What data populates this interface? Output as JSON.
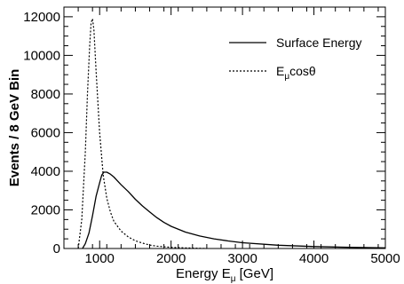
{
  "chart_data": {
    "type": "line",
    "title": "",
    "xlabel": "Energy E",
    "xlabel_sub": "μ",
    "xlabel_unit": " [GeV]",
    "ylabel": "Events / 8 GeV Bin",
    "xlim": [
      500,
      5000
    ],
    "ylim": [
      0,
      12500
    ],
    "x_ticks": [
      1000,
      2000,
      3000,
      4000,
      5000
    ],
    "y_ticks": [
      0,
      2000,
      4000,
      6000,
      8000,
      10000,
      12000
    ],
    "grid": false,
    "legend_position": "top-right",
    "legend": [
      {
        "label": "Surface Energy",
        "style": "solid"
      },
      {
        "label": "E",
        "sub": "μ",
        "tail": "cosθ",
        "style": "dotted"
      }
    ],
    "series": [
      {
        "name": "Surface Energy",
        "style": "solid",
        "color": "#000000",
        "x": [
          760,
          800,
          850,
          900,
          950,
          1000,
          1030,
          1060,
          1100,
          1150,
          1200,
          1250,
          1300,
          1400,
          1500,
          1600,
          1700,
          1800,
          1900,
          2000,
          2200,
          2400,
          2600,
          2800,
          3000,
          3500,
          4000,
          4500,
          5000
        ],
        "y": [
          0,
          250,
          800,
          1700,
          2700,
          3400,
          3800,
          3950,
          3950,
          3850,
          3700,
          3500,
          3300,
          2950,
          2550,
          2200,
          1900,
          1600,
          1350,
          1150,
          850,
          650,
          500,
          390,
          300,
          170,
          100,
          60,
          30
        ]
      },
      {
        "name": "E_μ cosθ",
        "style": "dotted",
        "color": "#000000",
        "x": [
          700,
          750,
          800,
          830,
          860,
          880,
          900,
          920,
          950,
          1000,
          1050,
          1100,
          1150,
          1200,
          1300,
          1400,
          1500,
          1600,
          1700,
          1800,
          2000,
          2200,
          2500
        ],
        "y": [
          0,
          1500,
          5000,
          8000,
          10500,
          11700,
          11900,
          11300,
          9200,
          6000,
          3800,
          2600,
          1900,
          1400,
          900,
          600,
          400,
          280,
          180,
          120,
          60,
          30,
          0
        ]
      }
    ]
  }
}
